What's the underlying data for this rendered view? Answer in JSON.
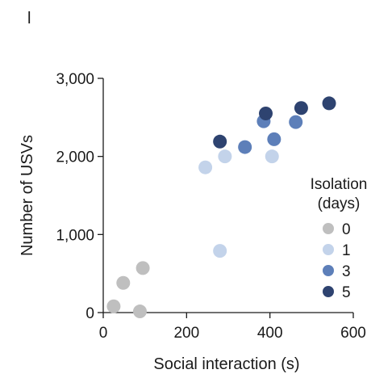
{
  "panel_label": "l",
  "chart_data": {
    "type": "scatter",
    "title": "",
    "xlabel": "Social interaction (s)",
    "ylabel": "Number of USVs",
    "xlim": [
      0,
      600
    ],
    "ylim": [
      0,
      3000
    ],
    "x_ticks": [
      0,
      200,
      400,
      600
    ],
    "x_tick_labels": [
      "0",
      "200",
      "400",
      "600"
    ],
    "y_ticks": [
      0,
      1000,
      2000,
      3000
    ],
    "y_tick_labels": [
      "0",
      "1,000",
      "2,000",
      "3,000"
    ],
    "grid": false,
    "legend": {
      "title_line1": "Isolation",
      "title_line2": "(days)",
      "placement": "right"
    },
    "series": [
      {
        "name": "0",
        "color": "#bfbfbf",
        "points": [
          {
            "x": 25,
            "y": 80
          },
          {
            "x": 48,
            "y": 380
          },
          {
            "x": 88,
            "y": 15
          },
          {
            "x": 95,
            "y": 570
          }
        ]
      },
      {
        "name": "1",
        "color": "#c3d3ea",
        "points": [
          {
            "x": 245,
            "y": 1860
          },
          {
            "x": 292,
            "y": 2000
          },
          {
            "x": 280,
            "y": 790
          },
          {
            "x": 405,
            "y": 2000
          }
        ]
      },
      {
        "name": "3",
        "color": "#5d7fb9",
        "points": [
          {
            "x": 340,
            "y": 2120
          },
          {
            "x": 385,
            "y": 2450
          },
          {
            "x": 410,
            "y": 2220
          },
          {
            "x": 462,
            "y": 2440
          }
        ]
      },
      {
        "name": "5",
        "color": "#2e4370",
        "points": [
          {
            "x": 280,
            "y": 2190
          },
          {
            "x": 390,
            "y": 2550
          },
          {
            "x": 475,
            "y": 2620
          },
          {
            "x": 542,
            "y": 2680
          }
        ]
      }
    ]
  }
}
